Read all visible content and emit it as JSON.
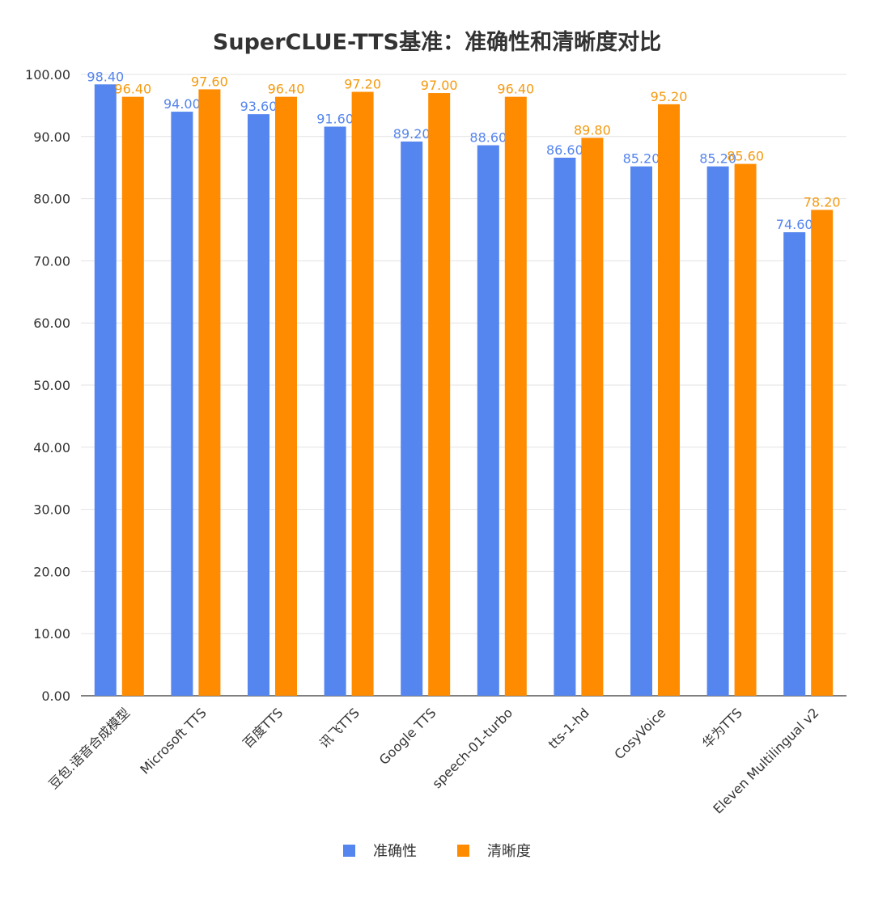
{
  "chart_data": {
    "type": "bar",
    "title": "SuperCLUE-TTS基准：准确性和清晰度对比",
    "categories": [
      "豆包.语音合成模型",
      "Microsoft TTS",
      "百度TTS",
      "讯飞TTS",
      "Google TTS",
      "speech-01-turbo",
      "tts-1-hd",
      "CosyVoice",
      "华为TTS",
      "Eleven Multilingual v2"
    ],
    "series": [
      {
        "name": "准确性",
        "color": "#5585EE",
        "label_color": "#5585EE",
        "values": [
          98.4,
          94.0,
          93.6,
          91.6,
          89.2,
          88.6,
          86.6,
          85.2,
          85.2,
          74.6
        ]
      },
      {
        "name": "清晰度",
        "color": "#FF8C00",
        "label_color": "#F39A10",
        "values": [
          96.4,
          97.6,
          96.4,
          97.2,
          97.0,
          96.4,
          89.8,
          95.2,
          85.6,
          78.2
        ]
      }
    ],
    "ylim": [
      0,
      100
    ],
    "yticks": [
      "0.00",
      "10.00",
      "20.00",
      "30.00",
      "40.00",
      "50.00",
      "60.00",
      "70.00",
      "80.00",
      "90.00",
      "100.00"
    ],
    "grid": true,
    "legend_position": "bottom"
  }
}
